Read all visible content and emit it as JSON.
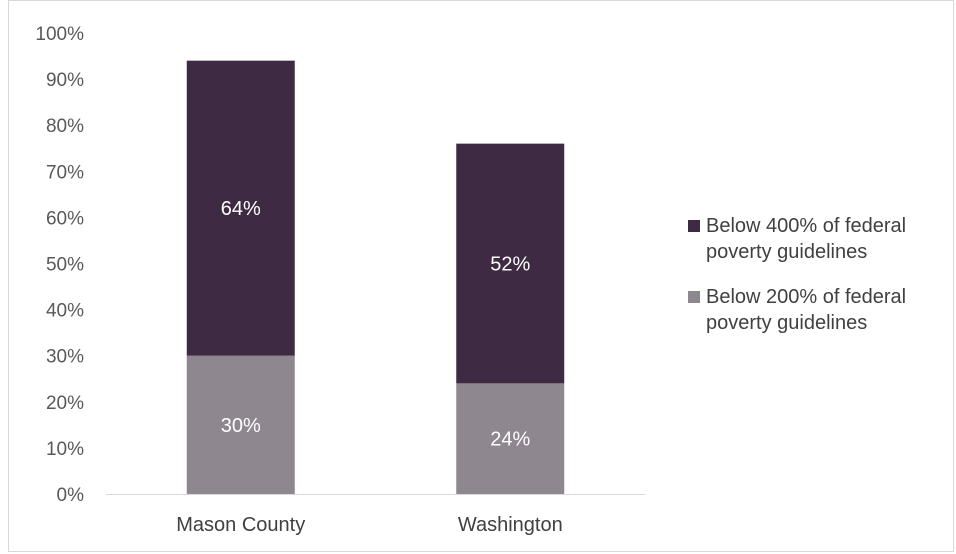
{
  "chart_data": {
    "type": "bar",
    "stacked": true,
    "categories": [
      "Mason County",
      "Washington"
    ],
    "series": [
      {
        "name": "Below 200% of federal poverty guidelines",
        "values": [
          30,
          24
        ],
        "labels": [
          "30%",
          "24%"
        ],
        "color": "#8f878f"
      },
      {
        "name": "Below 400% of federal poverty guidelines",
        "values": [
          64,
          52
        ],
        "labels": [
          "64%",
          "52%"
        ],
        "color": "#3e2a42"
      }
    ],
    "ylim": [
      0,
      100
    ],
    "yticks": [
      "0%",
      "10%",
      "20%",
      "30%",
      "40%",
      "50%",
      "60%",
      "70%",
      "80%",
      "90%",
      "100%"
    ],
    "grid": false,
    "legend_position": "right",
    "legend": [
      {
        "lines": [
          "Below 400% of federal",
          "poverty guidelines"
        ],
        "color": "#3e2a42"
      },
      {
        "lines": [
          "Below 200% of federal",
          "poverty guidelines"
        ],
        "color": "#8f878f"
      }
    ]
  }
}
